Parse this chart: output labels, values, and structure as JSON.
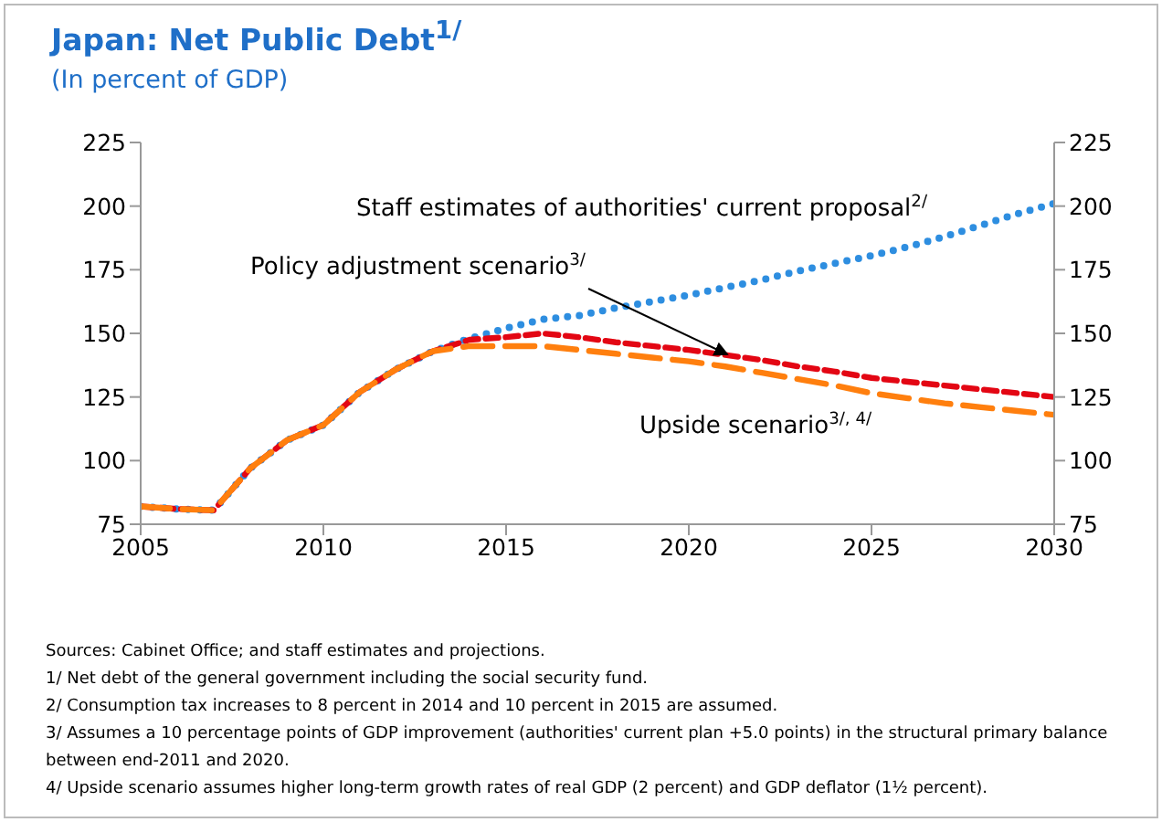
{
  "chart_data": {
    "type": "line",
    "title": "Japan: Net Public Debt$^{1/}$",
    "subtitle": "(In percent of GDP)",
    "x": [
      2005,
      2006,
      2007,
      2008,
      2009,
      2010,
      2011,
      2012,
      2013,
      2014,
      2015,
      2016,
      2017,
      2018,
      2019,
      2020,
      2021,
      2022,
      2023,
      2024,
      2025,
      2026,
      2027,
      2028,
      2029,
      2030
    ],
    "series": [
      {
        "name": "Staff estimates of authorities' current proposal$^{2/}$",
        "color": "#2e8ee0",
        "line_style": "dotted",
        "values": [
          82,
          81,
          80.5,
          97,
          108,
          114,
          127,
          136,
          143,
          148,
          152,
          155.5,
          157,
          160,
          162.5,
          165,
          168,
          171,
          174.5,
          177.5,
          180.5,
          184,
          188,
          192.5,
          197,
          201
        ]
      },
      {
        "name": "Policy adjustment scenario$^{3/}$",
        "color": "#e30613",
        "line_style": "dashed",
        "values": [
          82,
          81,
          80.5,
          97,
          108,
          114,
          127,
          136,
          143,
          147.5,
          148.5,
          150,
          148.5,
          146.5,
          145,
          143.5,
          141.5,
          139.5,
          137,
          135,
          132.5,
          131,
          129.5,
          128,
          126.5,
          125
        ]
      },
      {
        "name": "Upside scenario$^{3/, 4/}$",
        "color": "#ff7f0e",
        "line_style": "long-dashed",
        "values": [
          82,
          81,
          80.5,
          97,
          108,
          114,
          127,
          136,
          143,
          145,
          145,
          145,
          143.5,
          142,
          140.5,
          139,
          137,
          134.5,
          132,
          129.5,
          126.5,
          124.5,
          122.5,
          121,
          119.5,
          118
        ]
      }
    ],
    "xlim": [
      2005,
      2030
    ],
    "xticks": [
      2005,
      2010,
      2015,
      2020,
      2025,
      2030
    ],
    "ylim": [
      75,
      225
    ],
    "yticks": [
      75,
      100,
      125,
      150,
      175,
      200,
      225
    ],
    "y2lim": [
      75,
      225
    ],
    "y2ticks": [
      75,
      100,
      125,
      150,
      175,
      200,
      225
    ],
    "marker": "none",
    "annotations": [
      "Sources: Cabinet Office; and staff estimates and projections.",
      "1/ Net debt of the general government including the social security fund.",
      "2/ Consumption tax increases to 8 percent in 2014 and 10 percent in 2015 are assumed.",
      "3/ Assumes a 10 percentage points of GDP improvement (authorities' current plan +5.0 points) in the structural primary balance between end-2011 and 2020.",
      "4/ Upside scenario assumes higher long-term growth rates of real GDP (2 percent) and GDP deflator (1½ percent)."
    ]
  }
}
